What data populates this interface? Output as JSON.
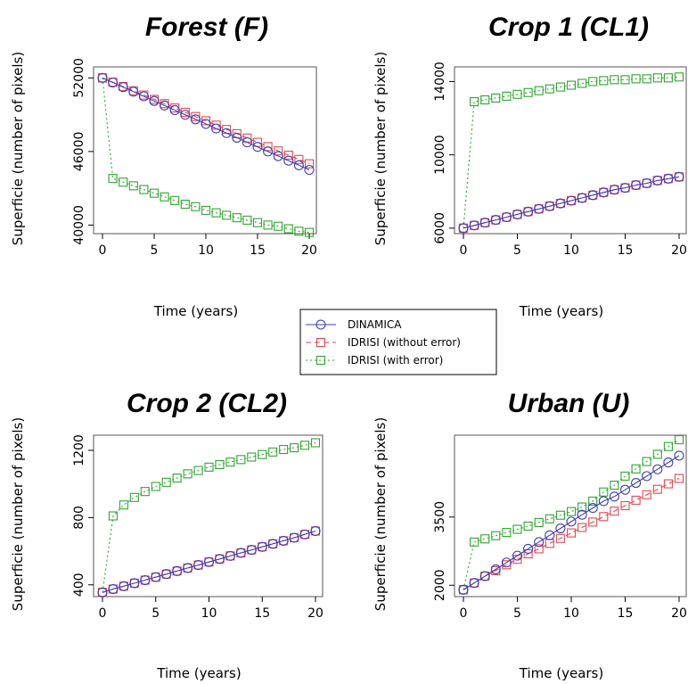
{
  "colors": {
    "DINAMICA": "#3f3fb4",
    "IDRISI_no_error": "#e8474f",
    "IDRISI_error": "#2ea62e",
    "axis": "#000000",
    "box": "#555555"
  },
  "legend": {
    "placement": "center",
    "entries": [
      {
        "label": "DINAMICA",
        "marker": "circle",
        "line": "solid",
        "color": "#3f3fb4"
      },
      {
        "label": "IDRISI (without error)",
        "marker": "square",
        "line": "dashed",
        "color": "#e8474f"
      },
      {
        "label": "IDRISI (with error)",
        "marker": "diamond",
        "line": "dotted",
        "color": "#2ea62e"
      }
    ]
  },
  "chart_data": [
    {
      "type": "line",
      "title": "Forest (F)",
      "xlabel": "Time (years)",
      "ylabel": "Superficie (number of pixels)",
      "xlim": [
        0,
        20
      ],
      "ylim": [
        39300,
        52900
      ],
      "xticks": [
        0,
        5,
        10,
        15,
        20
      ],
      "yticks": [
        40000,
        46000,
        52000
      ],
      "grid": false,
      "x": [
        0,
        1,
        2,
        3,
        4,
        5,
        6,
        7,
        8,
        9,
        10,
        11,
        12,
        13,
        14,
        15,
        16,
        17,
        18,
        19,
        20
      ],
      "series": [
        {
          "name": "DINAMICA",
          "values": [
            52000,
            51625,
            51250,
            50875,
            50500,
            50125,
            49750,
            49375,
            49000,
            48625,
            48250,
            47875,
            47500,
            47125,
            46750,
            46375,
            46000,
            45625,
            45250,
            44875,
            44500
          ]
        },
        {
          "name": "IDRISI (without error)",
          "values": [
            52000,
            51650,
            51300,
            50950,
            50600,
            50250,
            49900,
            49550,
            49200,
            48850,
            48500,
            48150,
            47800,
            47450,
            47100,
            46750,
            46400,
            46050,
            45700,
            45350,
            45000
          ]
        },
        {
          "name": "IDRISI (with error)",
          "values": [
            52000,
            43800,
            43500,
            43200,
            42900,
            42600,
            42300,
            42000,
            41700,
            41500,
            41200,
            41000,
            40800,
            40600,
            40400,
            40200,
            40000,
            39900,
            39700,
            39500,
            39400
          ]
        }
      ]
    },
    {
      "type": "line",
      "title": "Crop 1 (CL1)",
      "xlabel": "Time (years)",
      "ylabel": "Superficie (number of pixels)",
      "xlim": [
        0,
        20
      ],
      "ylim": [
        5700,
        14800
      ],
      "xticks": [
        0,
        5,
        10,
        15,
        20
      ],
      "yticks": [
        6000,
        10000,
        14000
      ],
      "grid": false,
      "x": [
        0,
        1,
        2,
        3,
        4,
        5,
        6,
        7,
        8,
        9,
        10,
        11,
        12,
        13,
        14,
        15,
        16,
        17,
        18,
        19,
        20
      ],
      "series": [
        {
          "name": "DINAMICA",
          "values": [
            6000,
            6150,
            6300,
            6450,
            6600,
            6750,
            6900,
            7050,
            7200,
            7350,
            7500,
            7650,
            7800,
            7950,
            8100,
            8200,
            8350,
            8450,
            8600,
            8700,
            8800
          ]
        },
        {
          "name": "IDRISI (without error)",
          "values": [
            6000,
            6150,
            6300,
            6450,
            6600,
            6750,
            6900,
            7050,
            7200,
            7350,
            7500,
            7650,
            7800,
            7950,
            8100,
            8200,
            8350,
            8450,
            8600,
            8700,
            8800
          ]
        },
        {
          "name": "IDRISI (with error)",
          "values": [
            6000,
            12900,
            13000,
            13100,
            13200,
            13300,
            13400,
            13500,
            13600,
            13700,
            13800,
            13900,
            14000,
            14050,
            14100,
            14100,
            14150,
            14150,
            14200,
            14200,
            14250
          ]
        }
      ]
    },
    {
      "type": "line",
      "title": "Crop 2 (CL2)",
      "xlabel": "Time (years)",
      "ylabel": "Superficie (number of pixels)",
      "xlim": [
        0,
        20
      ],
      "ylim": [
        330,
        1290
      ],
      "xticks": [
        0,
        5,
        10,
        15,
        20
      ],
      "yticks": [
        400,
        800,
        1200
      ],
      "grid": false,
      "x": [
        0,
        1,
        2,
        3,
        4,
        5,
        6,
        7,
        8,
        9,
        10,
        11,
        12,
        13,
        14,
        15,
        16,
        17,
        18,
        19,
        20
      ],
      "series": [
        {
          "name": "DINAMICA",
          "values": [
            355,
            375,
            392,
            410,
            428,
            446,
            464,
            482,
            500,
            518,
            536,
            554,
            572,
            590,
            608,
            626,
            644,
            662,
            680,
            700,
            720
          ]
        },
        {
          "name": "IDRISI (without error)",
          "values": [
            355,
            375,
            392,
            410,
            428,
            446,
            464,
            482,
            500,
            518,
            536,
            554,
            572,
            590,
            608,
            626,
            644,
            662,
            680,
            700,
            720
          ]
        },
        {
          "name": "IDRISI (with error)",
          "values": [
            355,
            810,
            875,
            920,
            955,
            985,
            1010,
            1035,
            1060,
            1080,
            1100,
            1115,
            1130,
            1145,
            1160,
            1175,
            1190,
            1205,
            1215,
            1230,
            1245
          ]
        }
      ]
    },
    {
      "type": "line",
      "title": "Urban (U)",
      "xlabel": "Time (years)",
      "ylabel": "Superficie (number of pixels)",
      "xlim": [
        0,
        20
      ],
      "ylim": [
        1750,
        5300
      ],
      "xticks": [
        0,
        5,
        10,
        15,
        20
      ],
      "yticks": [
        2000,
        3500
      ],
      "grid": false,
      "x": [
        0,
        1,
        2,
        3,
        4,
        5,
        6,
        7,
        8,
        9,
        10,
        11,
        12,
        13,
        14,
        15,
        16,
        17,
        18,
        19,
        20
      ],
      "series": [
        {
          "name": "DINAMICA",
          "values": [
            1900,
            2050,
            2200,
            2350,
            2500,
            2650,
            2800,
            2950,
            3100,
            3250,
            3400,
            3550,
            3700,
            3850,
            3950,
            4100,
            4250,
            4400,
            4550,
            4700,
            4850
          ]
        },
        {
          "name": "IDRISI (without error)",
          "values": [
            1900,
            2050,
            2200,
            2320,
            2450,
            2570,
            2690,
            2800,
            2920,
            3030,
            3150,
            3270,
            3390,
            3510,
            3630,
            3750,
            3870,
            3990,
            4110,
            4230,
            4350
          ]
        },
        {
          "name": "IDRISI (with error)",
          "values": [
            1900,
            2950,
            3020,
            3090,
            3160,
            3230,
            3300,
            3380,
            3460,
            3540,
            3620,
            3720,
            3850,
            4050,
            4200,
            4400,
            4560,
            4720,
            4880,
            5050,
            5200
          ]
        }
      ]
    }
  ]
}
